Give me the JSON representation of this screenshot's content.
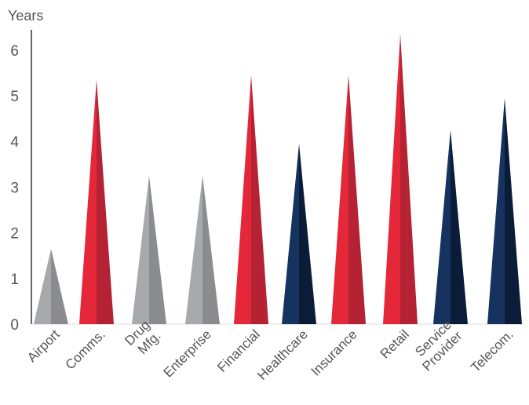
{
  "chart_data": {
    "type": "bar",
    "title": "",
    "xlabel": "",
    "ylabel": "Years",
    "ylim": [
      0,
      6.5
    ],
    "yticks": [
      "0",
      "1",
      "2",
      "3",
      "4",
      "5",
      "6"
    ],
    "grid": false,
    "categories": [
      "Airport",
      "Comms.",
      "Drug Mfg.",
      "Enterprise",
      "Financial",
      "Healthcare",
      "Insurance",
      "Retail",
      "Service Provider",
      "Telecom."
    ],
    "values": [
      1.65,
      5.35,
      3.25,
      3.25,
      5.45,
      3.95,
      5.45,
      6.35,
      4.25,
      4.95
    ],
    "bar_colors": [
      "gray",
      "red",
      "gray",
      "gray",
      "red",
      "navy",
      "red",
      "red",
      "navy",
      "navy"
    ]
  },
  "colors": {
    "gray": {
      "light": "#a7a9ac",
      "dark": "#8a8c8f"
    },
    "red": {
      "light": "#e4283a",
      "dark": "#b52233"
    },
    "navy": {
      "light": "#15335e",
      "dark": "#0b1c38"
    },
    "axis": "#666666"
  }
}
